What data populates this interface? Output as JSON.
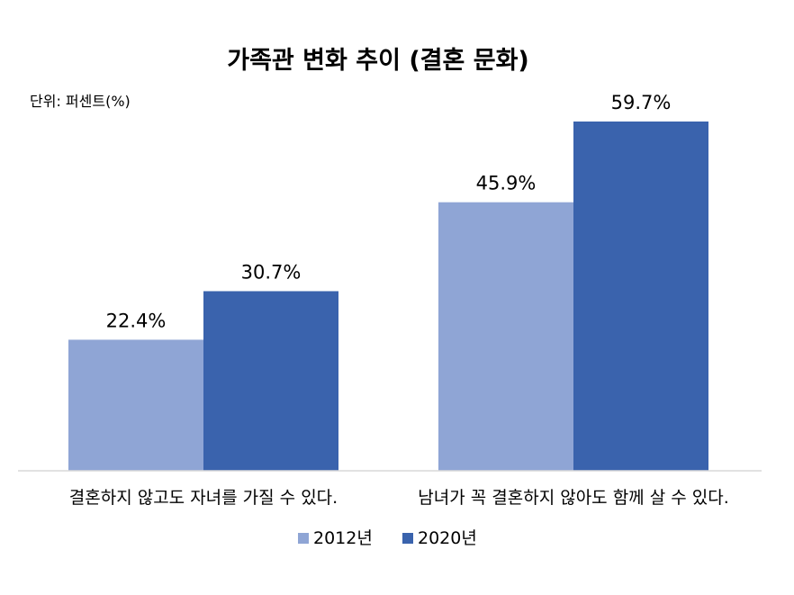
{
  "chart_data": {
    "type": "bar",
    "title": "가족관 변화 추이 (결혼 문화)",
    "unit_label": "단위: 퍼센트(%)",
    "categories": [
      "결혼하지 않고도 자녀를 가질 수 있다.",
      "남녀가 꼭 결혼하지 않아도 함께 살 수 있다."
    ],
    "series": [
      {
        "name": "2012년",
        "values": [
          22.4,
          45.9
        ],
        "labels": [
          "22.4%",
          "45.9%"
        ],
        "color": "#8fa5d5"
      },
      {
        "name": "2020년",
        "values": [
          30.7,
          59.7
        ],
        "labels": [
          "30.7%",
          "59.7%"
        ],
        "color": "#3a63ad"
      }
    ],
    "ylim": [
      0,
      60
    ],
    "grid": false,
    "legend_position": "bottom"
  }
}
